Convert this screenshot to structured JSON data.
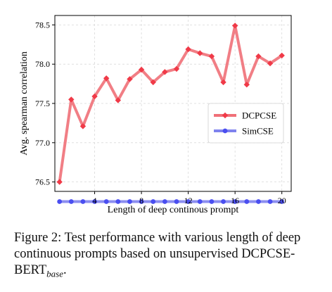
{
  "chart_data": {
    "type": "line",
    "title": "",
    "xlabel": "Length of deep continous prompt",
    "ylabel": "Avg. spearman correlation",
    "xlim": [
      0.6,
      20.8
    ],
    "ylim": [
      76.38,
      78.62
    ],
    "xticks": [
      4,
      8,
      12,
      16,
      20
    ],
    "yticks": [
      76.5,
      77.0,
      77.5,
      78.0,
      78.5
    ],
    "ytick_labels": [
      "76.5",
      "77.0",
      "77.5",
      "78.0",
      "78.5"
    ],
    "grid": true,
    "legend_position": "center-right",
    "x": [
      1,
      2,
      3,
      4,
      5,
      6,
      7,
      8,
      9,
      10,
      11,
      12,
      13,
      14,
      15,
      16,
      17,
      18,
      19,
      20
    ],
    "series": [
      {
        "name": "DCPCSE",
        "color": "#f07078",
        "marker_color": "#f03a48",
        "marker": "diamond",
        "values": [
          76.5,
          77.55,
          77.21,
          77.59,
          77.82,
          77.54,
          77.81,
          77.93,
          77.77,
          77.9,
          77.94,
          78.19,
          78.14,
          78.1,
          77.77,
          78.49,
          77.74,
          78.1,
          78.01,
          78.11
        ]
      },
      {
        "name": "SimCSE",
        "color": "#7f82ee",
        "marker_color": "#4a4ef0",
        "marker": "circle",
        "values": [
          76.25,
          76.25,
          76.25,
          76.25,
          76.25,
          76.25,
          76.25,
          76.25,
          76.25,
          76.25,
          76.25,
          76.25,
          76.25,
          76.25,
          76.25,
          76.25,
          76.25,
          76.25,
          76.25,
          76.25
        ]
      }
    ]
  },
  "caption": {
    "text": "Figure 2: Test performance with various length of deep continuous prompts based on unsupervised DCPCSE-BERT",
    "subscript": "base",
    "suffix": "."
  }
}
